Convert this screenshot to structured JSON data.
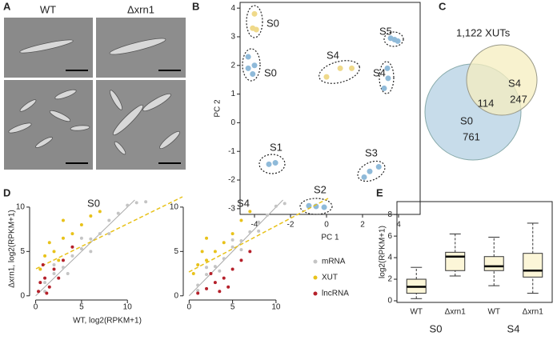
{
  "panel_labels": [
    "A",
    "B",
    "C",
    "D",
    "E"
  ],
  "micrographs": {
    "columns": [
      "WT",
      "Δxrn1"
    ]
  },
  "venn": {
    "title": "1,122 XUTs",
    "sets": [
      {
        "name": "S0",
        "only": 761
      },
      {
        "name": "S4",
        "only": 247
      }
    ],
    "overlap": 114
  },
  "chart_data": [
    {
      "type": "scatter",
      "xlabel": "PC 1",
      "ylabel": "PC 2",
      "frame": true,
      "xlim": [
        -4.8,
        5.2
      ],
      "ylim": [
        -3.2,
        4.2
      ],
      "xticks": [
        -4,
        -2,
        0,
        2,
        4
      ],
      "yticks": [
        -3,
        -2,
        -1,
        0,
        1,
        2,
        3,
        4
      ],
      "series": [
        {
          "color": "#efd98a",
          "x": [
            -4.0,
            -4.1,
            -3.9,
            0,
            0.76,
            1.4
          ],
          "values": [
            3.8,
            3.3,
            3.25,
            1.6,
            1.9,
            1.9
          ]
        },
        {
          "color": "#8fbad9",
          "x": [
            -4.35,
            -4.0,
            -4.35,
            -4.1,
            3.56,
            3.78,
            3.96,
            3.2,
            3.42,
            3.38,
            -3.2,
            -2.84,
            -0.98,
            -0.58,
            -0.13,
            2.09,
            2.4,
            2.9
          ],
          "values": [
            2.3,
            2.0,
            1.9,
            1.7,
            2.95,
            2.9,
            2.85,
            1.2,
            1.55,
            1.9,
            -1.45,
            -1.4,
            -2.9,
            -2.92,
            -2.95,
            -1.9,
            -1.7,
            -1.54
          ]
        }
      ],
      "group_labels": [
        "S0",
        "S0",
        "S4",
        "S5",
        "S4",
        "S1",
        "S2",
        "S3"
      ]
    },
    {
      "type": "scatter",
      "title": "S0",
      "xlabel": "WT, log2(RPKM+1)",
      "ylabel": "Δxrn1, log2(RPKM+1)",
      "frame": false,
      "xlim": [
        -0.4,
        16
      ],
      "ylim": [
        -0.2,
        10.8
      ],
      "xticks": [
        0,
        5,
        10
      ],
      "yticks": [
        0,
        5,
        10
      ],
      "legend": false,
      "series": [
        {
          "name": "mRNA",
          "color": "#c4c4c4",
          "x": [
            1,
            2,
            3,
            4,
            5,
            6,
            7,
            8,
            9,
            10,
            3.5,
            6,
            8,
            2,
            11,
            12,
            5,
            1
          ],
          "values": [
            1.5,
            2.5,
            3.2,
            4.5,
            5.3,
            6.4,
            7,
            8.5,
            9.3,
            10.2,
            2.5,
            5,
            7,
            3.5,
            10.5,
            10.6,
            6.5,
            0.5
          ]
        },
        {
          "name": "XUT",
          "color": "#e8c21a",
          "x": [
            0.5,
            1,
            2,
            3,
            4,
            5,
            6,
            1.5,
            3,
            7,
            2.5
          ],
          "values": [
            3,
            4.5,
            5,
            6.5,
            7,
            8,
            9,
            6,
            8.5,
            9.5,
            4
          ]
        },
        {
          "name": "lncRNA",
          "color": "#b5202a",
          "x": [
            0.3,
            0.5,
            1,
            1.5,
            2,
            0.8,
            2.5,
            1.2,
            3,
            4
          ],
          "values": [
            0.5,
            1.5,
            2,
            1,
            3,
            3.5,
            2,
            0.3,
            4,
            5.5
          ]
        }
      ]
    },
    {
      "type": "scatter",
      "title": "S4",
      "frame": false,
      "xlim": [
        -0.4,
        16
      ],
      "ylim": [
        -0.2,
        10.8
      ],
      "xticks": [
        0,
        5,
        10
      ],
      "yticks": [
        0,
        5,
        10
      ],
      "legend": "right",
      "series": [
        {
          "name": "mRNA",
          "color": "#c4c4c4",
          "x": [
            1,
            2,
            3,
            4,
            5,
            6,
            7,
            8,
            9,
            10,
            3.5,
            6,
            8,
            2,
            11,
            5,
            1
          ],
          "values": [
            1.2,
            2.4,
            3.3,
            4.2,
            5.5,
            6.2,
            7.2,
            8.3,
            9.1,
            10.1,
            2.8,
            5.2,
            7.3,
            3.2,
            10.4,
            6.3,
            0.6
          ]
        },
        {
          "name": "XUT",
          "color": "#e8c21a",
          "x": [
            0.5,
            1,
            2,
            3,
            4,
            5,
            6,
            2,
            7,
            1.5
          ],
          "values": [
            2.5,
            3.5,
            4,
            5,
            6,
            7,
            8.5,
            6.5,
            9.5,
            5
          ]
        },
        {
          "name": "lncRNA",
          "color": "#b5202a",
          "x": [
            1,
            2,
            3,
            4,
            5,
            3.5,
            6,
            2.5,
            7,
            4.5
          ],
          "values": [
            0.3,
            0.8,
            1.5,
            2,
            3,
            0.5,
            4,
            2.5,
            5,
            1
          ]
        }
      ]
    },
    {
      "type": "box",
      "ylabel": "log2(RPKM+1)",
      "frame": true,
      "color": "#fcf6d8",
      "categories": [
        "WT",
        "Δxrn1",
        "WT",
        "Δxrn1"
      ],
      "groups": [
        "S0",
        "S4"
      ],
      "ylim": [
        -0.15,
        9.2
      ],
      "yticks": [
        0,
        2,
        4,
        6,
        8
      ],
      "boxes": [
        {
          "min": 0.2,
          "q1": 0.7,
          "median": 1.3,
          "q3": 2.0,
          "max": 3.1
        },
        {
          "min": 2.3,
          "q1": 2.8,
          "median": 4.1,
          "q3": 4.5,
          "max": 6.2
        },
        {
          "min": 1.4,
          "q1": 2.8,
          "median": 3.2,
          "q3": 4.1,
          "max": 5.9
        },
        {
          "min": 0.7,
          "q1": 2.2,
          "median": 2.8,
          "q3": 4.4,
          "max": 7.2
        }
      ]
    }
  ]
}
